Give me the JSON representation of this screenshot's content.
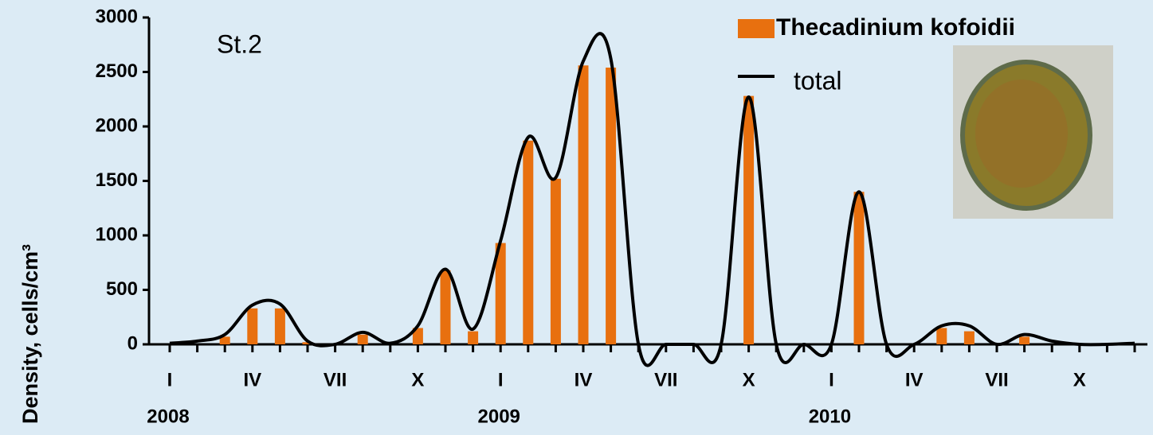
{
  "chart_data": {
    "type": "bar-line",
    "annotation": "St.2",
    "y_label": "Density, cells/cm³",
    "categories": [
      "I",
      null,
      null,
      "IV",
      null,
      null,
      "VII",
      null,
      null,
      "X",
      null,
      null,
      "I",
      null,
      null,
      "IV",
      null,
      null,
      "VII",
      null,
      null,
      "X",
      null,
      null,
      "I",
      null,
      null,
      "IV",
      null,
      null,
      "VII",
      null,
      null,
      "X",
      null,
      null
    ],
    "x_group_labels": [
      "2008",
      "2009",
      "2010"
    ],
    "series": [
      {
        "name": "Thecadinium kofoidii",
        "color": "#e8700f",
        "kind": "bar",
        "values": [
          null,
          null,
          70,
          330,
          330,
          20,
          null,
          90,
          null,
          150,
          680,
          120,
          930,
          1870,
          1520,
          2560,
          2540,
          null,
          null,
          null,
          null,
          2280,
          null,
          null,
          null,
          1400,
          null,
          null,
          150,
          120,
          null,
          70,
          null,
          null,
          null,
          null
        ]
      },
      {
        "name": "total",
        "color": "#000000",
        "kind": "line",
        "values": [
          10,
          30,
          90,
          360,
          370,
          30,
          0,
          110,
          10,
          170,
          690,
          140,
          950,
          1900,
          1530,
          2600,
          2620,
          0,
          0,
          0,
          0,
          2270,
          0,
          0,
          0,
          1400,
          0,
          0,
          170,
          170,
          0,
          90,
          30,
          0,
          0,
          10
        ]
      }
    ],
    "ylim": [
      0,
      3000
    ],
    "yticks": [
      0,
      500,
      1000,
      1500,
      2000,
      2500,
      3000
    ]
  }
}
